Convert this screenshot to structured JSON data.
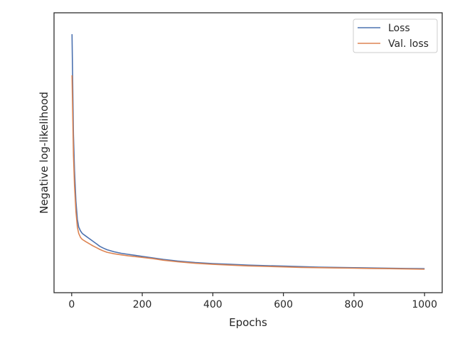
{
  "chart_data": {
    "type": "line",
    "title": "",
    "xlabel": "Epochs",
    "ylabel": "Negative log-likelihood",
    "xlim": [
      -50,
      1050
    ],
    "ylim": [
      0.0,
      1.0
    ],
    "xticks": [
      0,
      200,
      400,
      600,
      800,
      1000
    ],
    "xtick_labels": [
      "0",
      "200",
      "400",
      "600",
      "800",
      "1000"
    ],
    "yticks_shown": false,
    "grid": false,
    "legend": "upper right",
    "series": [
      {
        "name": "Loss",
        "color": "#4c72b0",
        "x": [
          1,
          3,
          5,
          8,
          12,
          16,
          20,
          25,
          30,
          40,
          50,
          60,
          70,
          80,
          90,
          100,
          120,
          140,
          160,
          180,
          200,
          230,
          260,
          300,
          350,
          400,
          450,
          500,
          550,
          600,
          650,
          700,
          750,
          800,
          850,
          900,
          950,
          1000
        ],
        "y": [
          0.95,
          0.75,
          0.56,
          0.42,
          0.3,
          0.23,
          0.2,
          0.185,
          0.175,
          0.165,
          0.155,
          0.145,
          0.135,
          0.125,
          0.118,
          0.112,
          0.104,
          0.098,
          0.094,
          0.09,
          0.086,
          0.08,
          0.074,
          0.068,
          0.062,
          0.058,
          0.055,
          0.052,
          0.05,
          0.048,
          0.046,
          0.044,
          0.043,
          0.042,
          0.041,
          0.04,
          0.039,
          0.038
        ]
      },
      {
        "name": "Val. loss",
        "color": "#dd8452",
        "x": [
          1,
          3,
          5,
          8,
          12,
          16,
          20,
          25,
          30,
          40,
          50,
          60,
          70,
          80,
          90,
          100,
          120,
          140,
          160,
          180,
          200,
          230,
          260,
          300,
          350,
          400,
          450,
          500,
          550,
          600,
          650,
          700,
          750,
          800,
          850,
          900,
          950,
          1000
        ],
        "y": [
          0.79,
          0.63,
          0.48,
          0.36,
          0.26,
          0.2,
          0.175,
          0.16,
          0.152,
          0.143,
          0.135,
          0.127,
          0.12,
          0.113,
          0.107,
          0.102,
          0.096,
          0.092,
          0.088,
          0.085,
          0.082,
          0.077,
          0.071,
          0.065,
          0.059,
          0.055,
          0.052,
          0.049,
          0.047,
          0.045,
          0.043,
          0.042,
          0.041,
          0.04,
          0.039,
          0.038,
          0.037,
          0.036
        ]
      }
    ]
  }
}
